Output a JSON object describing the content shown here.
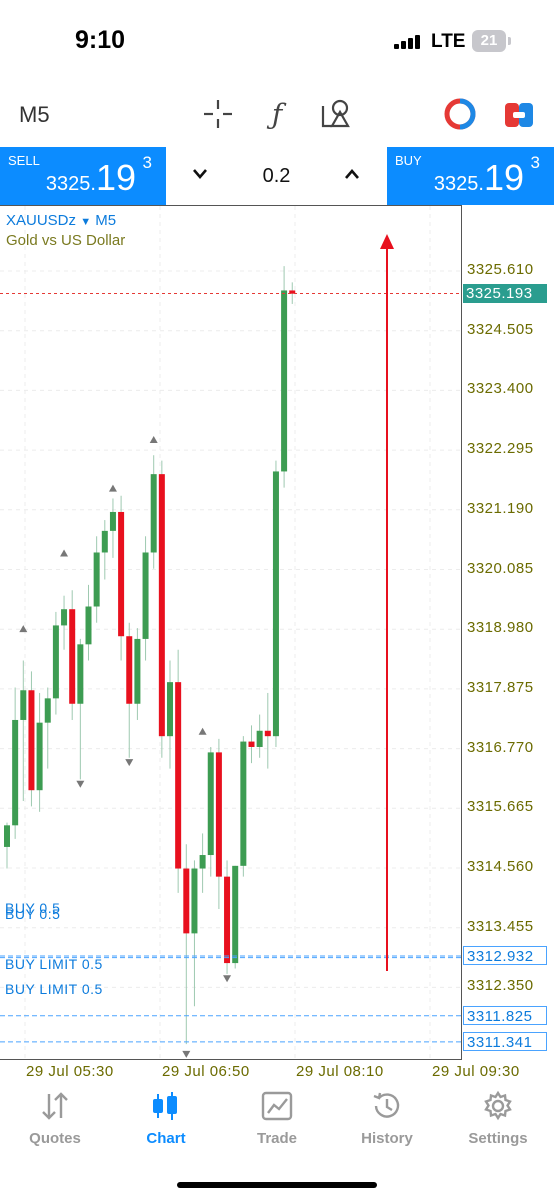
{
  "status_bar": {
    "time": "9:10",
    "network": "LTE",
    "battery": "21"
  },
  "toolbar": {
    "timeframe": "M5",
    "icons": [
      "crosshair-icon",
      "function-icon",
      "objects-icon",
      "one-click-trading-icon",
      "trade-icon"
    ]
  },
  "trade_panel": {
    "sell": {
      "label": "SELL",
      "price_prefix": "3325.",
      "price_big": "19",
      "price_sup": "3"
    },
    "buy": {
      "label": "BUY",
      "price_prefix": "3325.",
      "price_big": "19",
      "price_sup": "3"
    },
    "lot": "0.2",
    "decrease_icon": "chevron-down-icon",
    "increase_icon": "chevron-up-icon"
  },
  "chart": {
    "symbol": "XAUUSDz",
    "symbol_timeframe": "M5",
    "description": "Gold vs US Dollar",
    "price_scale": [
      "3325.610",
      "3324.505",
      "3323.400",
      "3322.295",
      "3321.190",
      "3320.085",
      "3318.980",
      "3317.875",
      "3316.770",
      "3315.665",
      "3314.560",
      "3313.455",
      "3312.350"
    ],
    "current_price": "3325.193",
    "order_lines": [
      {
        "label": "BUY 0.5",
        "price": "3312.932"
      },
      {
        "label": "BUY 0.5",
        "price": "3312.932"
      },
      {
        "label": "BUY LIMIT 0.5",
        "price": "3311.825"
      },
      {
        "label": "BUY LIMIT 0.5",
        "price": "3311.341"
      }
    ],
    "time_labels": [
      "29 Jul 05:30",
      "29 Jul 06:50",
      "29 Jul 08:10",
      "29 Jul 09:30"
    ],
    "colors": {
      "bull": "#3d9c52",
      "bear": "#e8101e",
      "order_line": "#4aa3ff",
      "price_line": "#e53935",
      "arrow": "#e8101e"
    }
  },
  "chart_data": {
    "type": "candlestick",
    "symbol": "XAUUSDz",
    "timeframe": "M5",
    "title": "Gold vs US Dollar",
    "ylim": [
      3310.0,
      3327.5
    ],
    "x_ticks": [
      "29 Jul 05:30",
      "29 Jul 06:50",
      "29 Jul 08:10",
      "29 Jul 09:30"
    ],
    "candles": [
      {
        "o": 3314.95,
        "h": 3315.4,
        "l": 3314.55,
        "c": 3315.35
      },
      {
        "o": 3315.35,
        "h": 3317.9,
        "l": 3315.1,
        "c": 3317.3
      },
      {
        "o": 3317.3,
        "h": 3318.4,
        "l": 3315.8,
        "c": 3317.85
      },
      {
        "o": 3317.85,
        "h": 3318.2,
        "l": 3315.7,
        "c": 3316.0
      },
      {
        "o": 3316.0,
        "h": 3317.8,
        "l": 3315.6,
        "c": 3317.25
      },
      {
        "o": 3317.25,
        "h": 3317.9,
        "l": 3316.4,
        "c": 3317.7
      },
      {
        "o": 3317.7,
        "h": 3319.3,
        "l": 3317.4,
        "c": 3319.05
      },
      {
        "o": 3319.05,
        "h": 3319.6,
        "l": 3318.6,
        "c": 3319.35
      },
      {
        "o": 3319.35,
        "h": 3319.7,
        "l": 3317.3,
        "c": 3317.6
      },
      {
        "o": 3317.6,
        "h": 3318.8,
        "l": 3316.2,
        "c": 3318.7
      },
      {
        "o": 3318.7,
        "h": 3319.8,
        "l": 3318.4,
        "c": 3319.4
      },
      {
        "o": 3319.4,
        "h": 3320.7,
        "l": 3319.1,
        "c": 3320.4
      },
      {
        "o": 3320.4,
        "h": 3321.0,
        "l": 3319.9,
        "c": 3320.8
      },
      {
        "o": 3320.8,
        "h": 3321.4,
        "l": 3320.3,
        "c": 3321.15
      },
      {
        "o": 3321.15,
        "h": 3321.45,
        "l": 3318.4,
        "c": 3318.85
      },
      {
        "o": 3318.85,
        "h": 3319.1,
        "l": 3316.6,
        "c": 3317.6
      },
      {
        "o": 3317.6,
        "h": 3319.0,
        "l": 3317.3,
        "c": 3318.8
      },
      {
        "o": 3318.8,
        "h": 3320.7,
        "l": 3318.4,
        "c": 3320.4
      },
      {
        "o": 3320.4,
        "h": 3322.2,
        "l": 3320.1,
        "c": 3321.85
      },
      {
        "o": 3321.85,
        "h": 3322.1,
        "l": 3316.6,
        "c": 3317.0
      },
      {
        "o": 3317.0,
        "h": 3318.4,
        "l": 3316.4,
        "c": 3318.0
      },
      {
        "o": 3318.0,
        "h": 3318.6,
        "l": 3314.1,
        "c": 3314.55
      },
      {
        "o": 3314.55,
        "h": 3315.0,
        "l": 3311.3,
        "c": 3313.35
      },
      {
        "o": 3313.35,
        "h": 3314.7,
        "l": 3312.0,
        "c": 3314.55
      },
      {
        "o": 3314.55,
        "h": 3315.2,
        "l": 3314.1,
        "c": 3314.8
      },
      {
        "o": 3314.8,
        "h": 3316.8,
        "l": 3314.4,
        "c": 3316.7
      },
      {
        "o": 3316.7,
        "h": 3316.95,
        "l": 3313.8,
        "c": 3314.4
      },
      {
        "o": 3314.4,
        "h": 3314.7,
        "l": 3312.6,
        "c": 3312.8
      },
      {
        "o": 3312.8,
        "h": 3314.6,
        "l": 3312.7,
        "c": 3314.6
      },
      {
        "o": 3314.6,
        "h": 3317.0,
        "l": 3314.4,
        "c": 3316.9
      },
      {
        "o": 3316.9,
        "h": 3317.2,
        "l": 3316.5,
        "c": 3316.8
      },
      {
        "o": 3316.8,
        "h": 3317.4,
        "l": 3316.6,
        "c": 3317.1
      },
      {
        "o": 3317.1,
        "h": 3317.8,
        "l": 3316.4,
        "c": 3317.0
      },
      {
        "o": 3317.0,
        "h": 3322.1,
        "l": 3316.8,
        "c": 3321.9
      },
      {
        "o": 3321.9,
        "h": 3325.7,
        "l": 3321.6,
        "c": 3325.25
      },
      {
        "o": 3325.25,
        "h": 3325.4,
        "l": 3325.0,
        "c": 3325.19
      }
    ],
    "fractal_markers": [
      {
        "index": 2,
        "type": "up",
        "price": 3319.0
      },
      {
        "index": 7,
        "type": "up",
        "price": 3320.4
      },
      {
        "index": 9,
        "type": "down",
        "price": 3316.1
      },
      {
        "index": 13,
        "type": "up",
        "price": 3321.6
      },
      {
        "index": 15,
        "type": "down",
        "price": 3316.5
      },
      {
        "index": 18,
        "type": "up",
        "price": 3322.5
      },
      {
        "index": 24,
        "type": "up",
        "price": 3317.1
      },
      {
        "index": 22,
        "type": "down",
        "price": 3311.1
      },
      {
        "index": 27,
        "type": "down",
        "price": 3312.5
      }
    ],
    "horizontal_lines": [
      {
        "price": 3325.193,
        "kind": "bid"
      },
      {
        "price": 3312.932,
        "kind": "buy"
      },
      {
        "price": 3312.9,
        "kind": "buy"
      },
      {
        "price": 3311.825,
        "kind": "buy limit"
      },
      {
        "price": 3311.341,
        "kind": "buy limit"
      }
    ]
  },
  "tab_bar": {
    "tabs": [
      {
        "label": "Quotes",
        "icon": "quotes-arrows-icon",
        "active": false
      },
      {
        "label": "Chart",
        "icon": "candlestick-icon",
        "active": true
      },
      {
        "label": "Trade",
        "icon": "trade-chart-icon",
        "active": false
      },
      {
        "label": "History",
        "icon": "history-clock-icon",
        "active": false
      },
      {
        "label": "Settings",
        "icon": "gear-icon",
        "active": false
      }
    ]
  }
}
